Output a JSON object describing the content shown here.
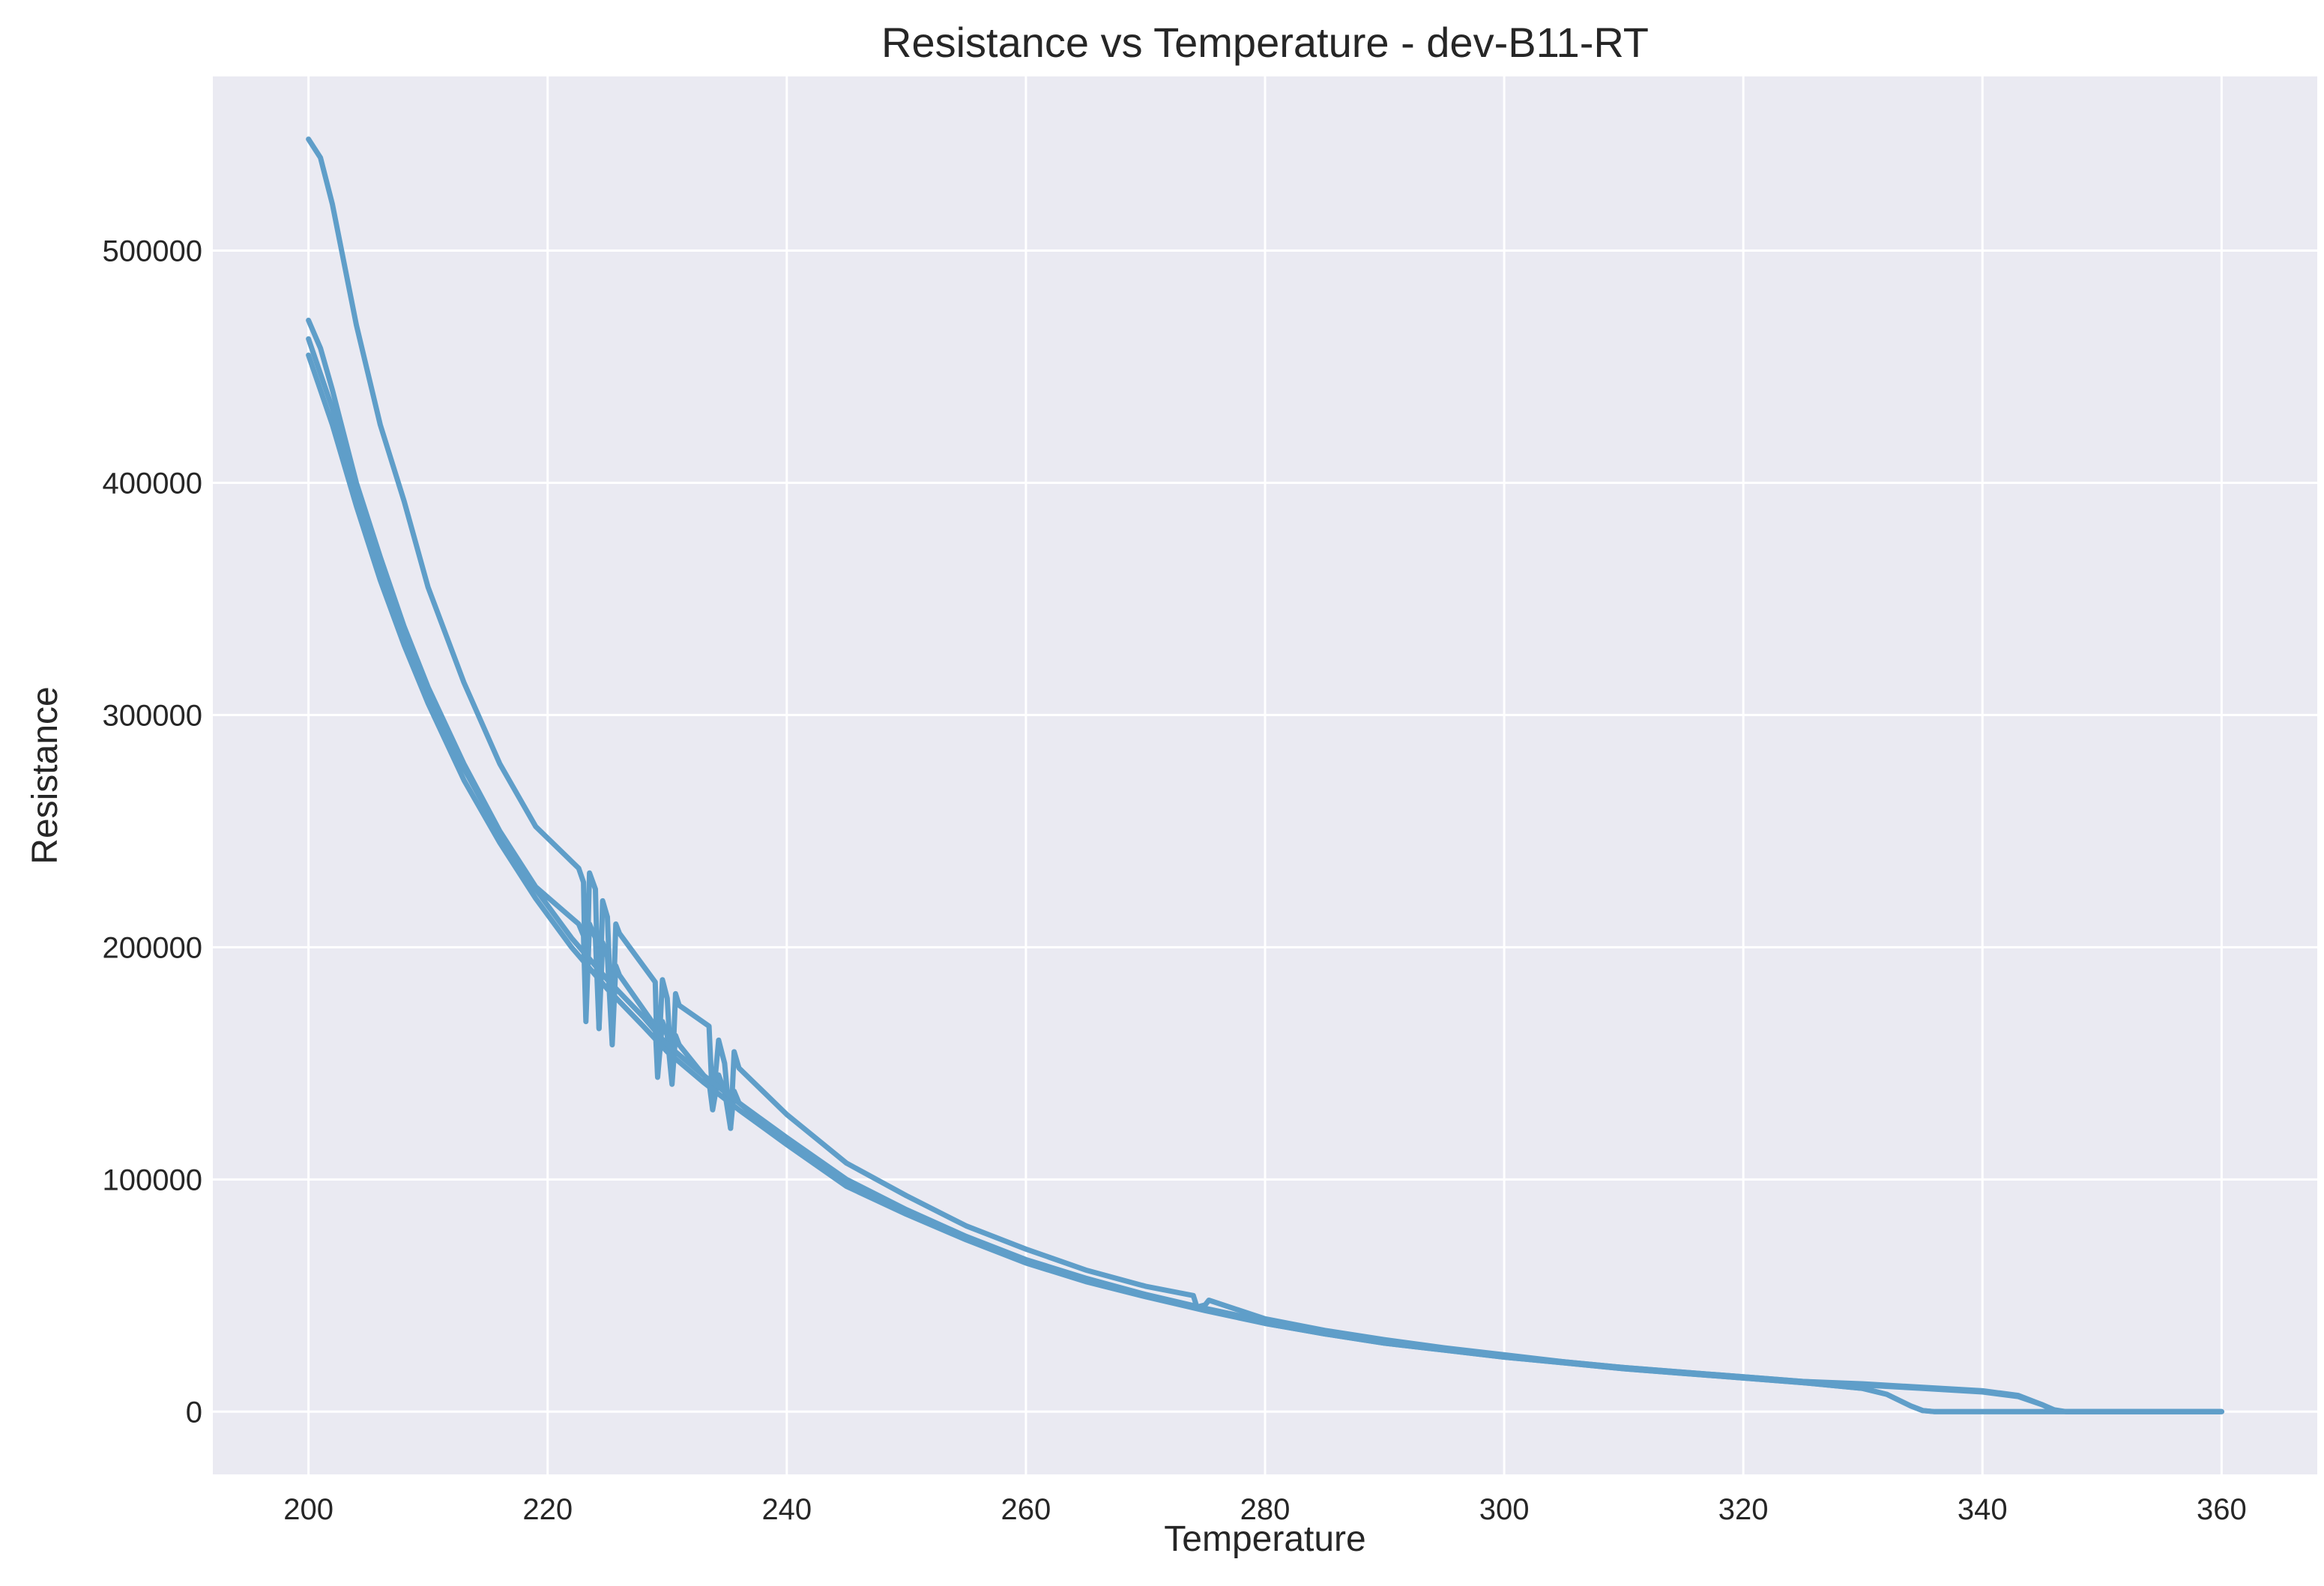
{
  "chart_data": {
    "type": "line",
    "title": "Resistance vs Temperature - dev-B11-RT",
    "xlabel": "Temperature",
    "ylabel": "Resistance",
    "xlim": [
      192,
      368
    ],
    "ylim": [
      -27000,
      575000
    ],
    "xticks": [
      200,
      220,
      240,
      260,
      280,
      300,
      320,
      340,
      360
    ],
    "yticks": [
      0,
      100000,
      200000,
      300000,
      400000,
      500000
    ],
    "xtick_labels": [
      "200",
      "220",
      "240",
      "260",
      "280",
      "300",
      "320",
      "340",
      "360"
    ],
    "ytick_labels": [
      "0",
      "100000",
      "200000",
      "300000",
      "400000",
      "500000"
    ],
    "grid": true,
    "background": "#eaeaf2",
    "line_color": "#5f9ec9",
    "series": [
      {
        "x": [
          200.0,
          201,
          202,
          204,
          206,
          208,
          210,
          213,
          216,
          219,
          222.6,
          223,
          223.2,
          223.5,
          224,
          224.3,
          224.6,
          225,
          225.4,
          225.7,
          226,
          229,
          229.2,
          229.6,
          230,
          230.4,
          230.7,
          231,
          233.5,
          233.8,
          234.3,
          234.8,
          235.3,
          235.6,
          236,
          240,
          245,
          250,
          255,
          260,
          265,
          270,
          274,
          274.3,
          275,
          275.3,
          280,
          285,
          290,
          295,
          300,
          305,
          310,
          315,
          320,
          325,
          330,
          335,
          340,
          343,
          345,
          346,
          347,
          350,
          355,
          360
        ],
        "y": [
          548000,
          540000,
          520000,
          468000,
          425000,
          392000,
          355000,
          314000,
          279000,
          252000,
          234000,
          228000,
          170000,
          232000,
          225000,
          165000,
          220000,
          213000,
          160000,
          210000,
          206000,
          185000,
          145000,
          186000,
          178000,
          142000,
          180000,
          175000,
          166000,
          132000,
          160000,
          150000,
          122000,
          155000,
          148000,
          128000,
          107000,
          93000,
          80000,
          70000,
          61000,
          54000,
          50000,
          45000,
          46000,
          48000,
          40000,
          35000,
          31000,
          27500,
          24500,
          21500,
          19000,
          17000,
          15000,
          13000,
          12000,
          10500,
          9000,
          7000,
          3000,
          500,
          0,
          0,
          0,
          0
        ]
      },
      {
        "x": [
          200.0,
          201,
          202,
          204,
          206,
          208,
          210,
          213,
          216,
          219,
          222.6,
          223,
          223.2,
          223.5,
          224,
          224.3,
          224.6,
          225,
          225.4,
          225.7,
          226,
          229,
          229.2,
          229.6,
          230,
          230.4,
          230.7,
          231,
          233.5,
          233.8,
          234.3,
          234.8,
          235.3,
          235.6,
          236,
          240,
          245,
          250,
          255,
          260,
          265,
          270,
          275,
          280,
          285,
          290,
          295,
          300,
          305,
          310,
          315,
          320,
          325,
          330,
          332,
          334,
          335,
          336,
          340,
          350,
          360
        ],
        "y": [
          470000,
          458000,
          440000,
          400000,
          368000,
          338000,
          312000,
          279000,
          250000,
          226000,
          210000,
          205000,
          168000,
          210000,
          204000,
          165000,
          202000,
          196000,
          158000,
          192000,
          188000,
          166000,
          144000,
          168000,
          162000,
          141000,
          162000,
          158000,
          142000,
          130000,
          145000,
          138000,
          122000,
          138000,
          133000,
          116000,
          98000,
          86000,
          75000,
          65000,
          57000,
          50000,
          44000,
          38000,
          33500,
          29500,
          26500,
          23500,
          21000,
          18500,
          16500,
          14500,
          12500,
          10000,
          7500,
          2500,
          500,
          0,
          0,
          0,
          0
        ]
      },
      {
        "x": [
          200.0,
          202,
          204,
          206,
          208,
          210,
          213,
          216,
          219,
          222,
          225,
          228,
          230,
          233,
          236,
          240,
          245,
          250,
          255,
          260,
          265,
          270,
          275,
          280,
          285,
          290,
          295,
          300,
          305,
          310,
          315,
          320,
          325,
          330,
          332,
          334,
          335,
          336,
          340,
          350,
          360
        ],
        "y": [
          455000,
          425000,
          390000,
          358000,
          330000,
          305000,
          272000,
          245000,
          221000,
          200000,
          182000,
          166000,
          155000,
          142000,
          130000,
          115000,
          97000,
          85000,
          74000,
          64000,
          56000,
          49500,
          43500,
          38000,
          33500,
          29500,
          26500,
          23500,
          21000,
          18500,
          16500,
          14500,
          12500,
          10000,
          7500,
          2500,
          500,
          0,
          0,
          0,
          0
        ]
      },
      {
        "x": [
          200.0,
          202,
          204,
          206,
          208,
          210,
          213,
          216,
          219,
          222,
          225,
          228,
          230,
          233,
          236,
          240,
          245,
          250,
          255,
          260,
          265,
          270,
          275,
          280,
          285,
          290,
          295,
          300,
          305,
          310,
          315,
          320,
          325,
          330,
          335,
          340,
          343,
          345,
          346,
          347,
          350,
          360
        ],
        "y": [
          462000,
          432000,
          396000,
          364000,
          335000,
          310000,
          277000,
          249000,
          225000,
          204000,
          186000,
          170000,
          158000,
          145000,
          133000,
          118000,
          100000,
          87000,
          75500,
          65500,
          57500,
          50500,
          44500,
          39000,
          34500,
          30500,
          27000,
          24000,
          21500,
          19000,
          17000,
          15000,
          13000,
          11500,
          10000,
          8500,
          6500,
          3000,
          800,
          0,
          0,
          0
        ]
      }
    ]
  }
}
